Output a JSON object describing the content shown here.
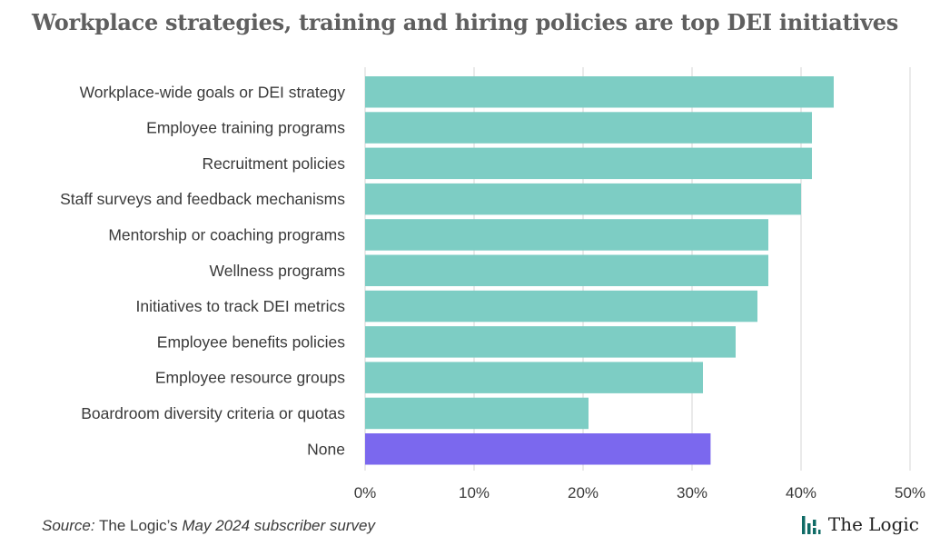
{
  "chart_data": {
    "type": "bar",
    "orientation": "horizontal",
    "title": "Workplace strategies, training and hiring policies are top DEI initiatives",
    "categories": [
      "Workplace-wide goals or DEI strategy",
      "Employee training programs",
      "Recruitment policies",
      "Staff surveys and feedback mechanisms",
      "Mentorship or coaching programs",
      "Wellness programs",
      "Initiatives to track DEI metrics",
      "Employee benefits policies",
      "Employee resource groups",
      "Boardroom diversity criteria or quotas",
      "None"
    ],
    "values": [
      43,
      41,
      41,
      40,
      37,
      37,
      36,
      34,
      31,
      20.5,
      31.7
    ],
    "colors": [
      "#7dcdc4",
      "#7dcdc4",
      "#7dcdc4",
      "#7dcdc4",
      "#7dcdc4",
      "#7dcdc4",
      "#7dcdc4",
      "#7dcdc4",
      "#7dcdc4",
      "#7dcdc4",
      "#7b68ee"
    ],
    "xlim": [
      0,
      50
    ],
    "xticks": [
      0,
      10,
      20,
      30,
      40,
      50
    ],
    "xtick_labels": [
      "0%",
      "10%",
      "20%",
      "30%",
      "40%",
      "50%"
    ],
    "grid": true,
    "xlabel": "",
    "ylabel": ""
  },
  "footer": {
    "source_prefix": "Source:",
    "source_mid": " The Logic’s ",
    "source_suffix": "May 2024 subscriber survey",
    "brand": "The Logic"
  },
  "colors": {
    "brand_icon": "#0f6b66",
    "grid": "#d6d6d6"
  }
}
